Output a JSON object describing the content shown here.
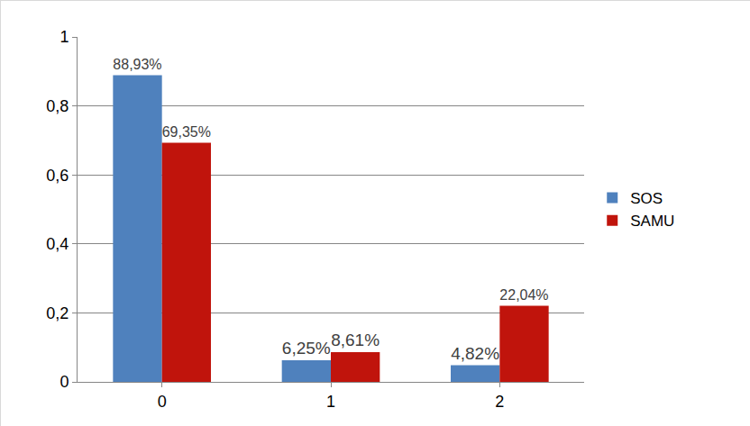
{
  "chart_data": {
    "type": "bar",
    "categories": [
      "0",
      "1",
      "2"
    ],
    "series": [
      {
        "name": "SOS",
        "color": "#4f81bd",
        "values": [
          0.8893,
          0.0625,
          0.0482
        ],
        "value_labels": [
          "88,93%",
          "6,25%",
          "4,82%"
        ]
      },
      {
        "name": "SAMU",
        "color": "#c0140c",
        "values": [
          0.6935,
          0.0861,
          0.2204
        ],
        "value_labels": [
          "69,35%",
          "8,61%",
          "22,04%"
        ]
      }
    ],
    "ylim": [
      0,
      1
    ],
    "yticks": [
      0,
      {
        "value": 0.2,
        "label": "0,2"
      },
      {
        "value": 0.4,
        "label": "0,4"
      },
      {
        "value": 0.6,
        "label": "0,6"
      },
      {
        "value": 0.8,
        "label": "0,8"
      },
      1
    ],
    "grid": true,
    "legend": "right",
    "data_labels": true
  }
}
